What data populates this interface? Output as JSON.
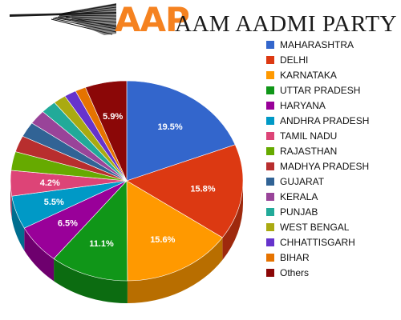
{
  "header": {
    "logo_a1": "AA",
    "logo_p": "P",
    "party_name": "AAM AADMI PARTY",
    "icon": "broom-icon"
  },
  "chart_data": {
    "type": "pie",
    "categories": [
      "MAHARASHTRA",
      "DELHI",
      "KARNATAKA",
      "UTTAR PRADESH",
      "HARYANA",
      "ANDHRA PRADESH",
      "TAMIL NADU",
      "RAJASTHAN",
      "MADHYA PRADESH",
      "GUJARAT",
      "KERALA",
      "PUNJAB",
      "WEST BENGAL",
      "CHHATTISGARH",
      "BIHAR",
      "Others"
    ],
    "values": [
      19.5,
      15.8,
      15.6,
      11.1,
      6.5,
      5.5,
      4.2,
      3.1,
      2.7,
      2.5,
      2.4,
      2.2,
      1.8,
      1.7,
      1.5,
      5.9
    ],
    "labels": [
      "19.5%",
      "15.8%",
      "15.6%",
      "11.1%",
      "6.5%",
      "5.5%",
      "4.2%",
      "",
      "",
      "",
      "",
      "",
      "",
      "",
      "",
      "5.9%"
    ],
    "colors": [
      "#3366cc",
      "#dc3912",
      "#ff9900",
      "#109618",
      "#990099",
      "#0099c6",
      "#dd4477",
      "#66aa00",
      "#b82e2e",
      "#316395",
      "#994499",
      "#22aa99",
      "#aaaa11",
      "#6633cc",
      "#e67300",
      "#8b0707"
    ],
    "legend_position": "right"
  }
}
